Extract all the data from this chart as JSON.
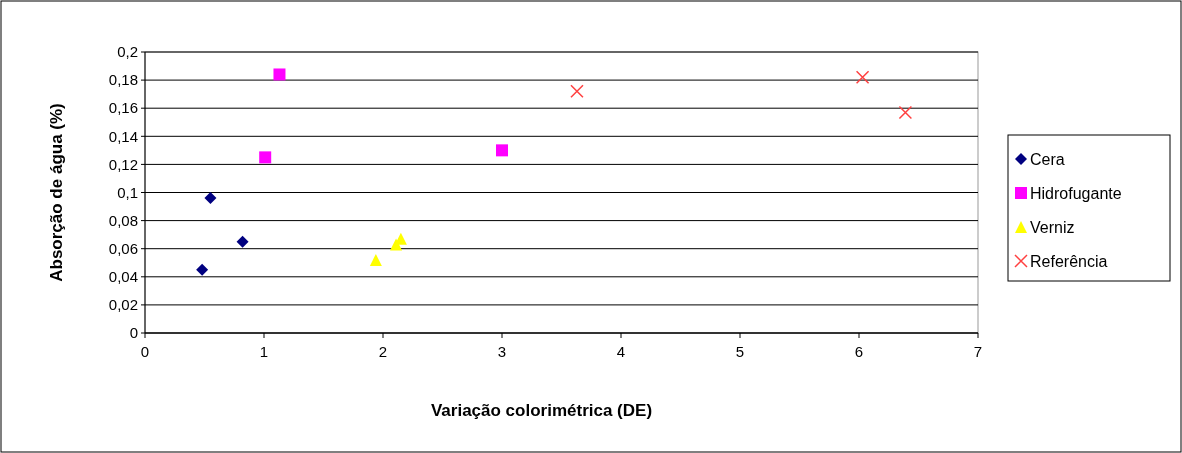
{
  "chart_data": {
    "type": "scatter",
    "xlabel": "Variação colorimétrica (DE)",
    "ylabel": "Absorção de água (%)",
    "xlim": [
      0,
      7
    ],
    "xticks": [
      0,
      1,
      2,
      3,
      4,
      5,
      6,
      7
    ],
    "ylim": [
      0,
      0.2
    ],
    "yticks": [
      0,
      {
        "value": 0.02,
        "label": "0,02"
      },
      {
        "value": 0.04,
        "label": "0,04"
      },
      {
        "value": 0.06,
        "label": "0,06"
      },
      {
        "value": 0.08,
        "label": "0,08"
      },
      {
        "value": 0.1,
        "label": "0,1"
      },
      {
        "value": 0.12,
        "label": "0,12"
      },
      {
        "value": 0.14,
        "label": "0,14"
      },
      {
        "value": 0.16,
        "label": "0,16"
      },
      {
        "value": 0.18,
        "label": "0,18"
      },
      {
        "value": 0.2,
        "label": "0,2"
      }
    ],
    "grid": "y",
    "legend": "right",
    "series": [
      {
        "name": "Cera",
        "color": "#000080",
        "marker": "diamond",
        "x": [
          0.48,
          0.55,
          0.82
        ],
        "values": [
          0.045,
          0.096,
          0.065
        ]
      },
      {
        "name": "Hidrofugante",
        "color": "#ff00ff",
        "marker": "square",
        "x": [
          1.13,
          1.01,
          3.0
        ],
        "values": [
          0.184,
          0.125,
          0.13
        ]
      },
      {
        "name": "Verniz",
        "color": "#ffff00",
        "marker": "triangle",
        "x": [
          1.94,
          2.11,
          2.15
        ],
        "values": [
          0.052,
          0.063,
          0.067
        ]
      },
      {
        "name": "Referência",
        "color": "#ff4040",
        "marker": "cross",
        "x": [
          3.63,
          6.03,
          6.39
        ],
        "values": [
          0.172,
          0.182,
          0.157
        ]
      }
    ]
  }
}
